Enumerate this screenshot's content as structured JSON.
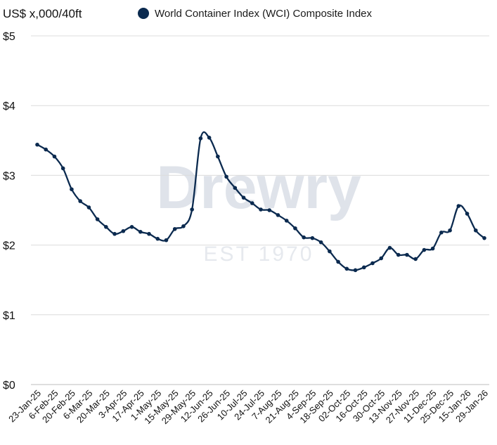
{
  "chart_data": {
    "type": "line",
    "unit_label": "US$ x,000/40ft",
    "legend": {
      "position": "top",
      "entries": [
        "World Container Index (WCI) Composite Index"
      ]
    },
    "watermark": {
      "brand": "Drewry",
      "tagline": "EST 1970"
    },
    "ylim": [
      0,
      5
    ],
    "y_ticks": [
      {
        "value": 0,
        "label": "$0"
      },
      {
        "value": 1,
        "label": "$1"
      },
      {
        "value": 2,
        "label": "$2"
      },
      {
        "value": 3,
        "label": "$3"
      },
      {
        "value": 4,
        "label": "$4"
      },
      {
        "value": 5,
        "label": "$5"
      }
    ],
    "grid": true,
    "x_tick_labels": [
      "23-Jan-25",
      "6-Feb-25",
      "20-Feb-25",
      "6-Mar-25",
      "20-Mar-25",
      "3-Apr-25",
      "17-Apr-25",
      "1-May-25",
      "15-May-25",
      "29-May-25",
      "12-Jun-25",
      "26-Jun-25",
      "10-Jul-25",
      "24-Jul-25",
      "7-Aug-25",
      "21-Aug-25",
      "4-Sep-25",
      "18-Sep-25",
      "02-Oct-25",
      "16-Oct-25",
      "30-Oct-25",
      "13-Nov-25",
      "27-Nov-25",
      "11-Dec-25",
      "25-Dec-25",
      "15-Jan-26",
      "29-Jan-26"
    ],
    "series": [
      {
        "name": "World Container Index (WCI) Composite Index",
        "color": "#0b2a4f",
        "values": [
          3.44,
          3.37,
          3.27,
          3.1,
          2.8,
          2.63,
          2.54,
          2.37,
          2.26,
          2.16,
          2.2,
          2.26,
          2.19,
          2.16,
          2.09,
          2.07,
          2.23,
          2.27,
          2.51,
          3.53,
          3.54,
          3.27,
          2.98,
          2.82,
          2.68,
          2.6,
          2.51,
          2.5,
          2.43,
          2.35,
          2.24,
          2.11,
          2.1,
          2.04,
          1.91,
          1.76,
          1.66,
          1.64,
          1.68,
          1.74,
          1.81,
          1.96,
          1.86,
          1.86,
          1.8,
          1.93,
          1.95,
          2.18,
          2.21,
          2.56,
          2.45,
          2.21,
          2.1
        ]
      }
    ]
  }
}
